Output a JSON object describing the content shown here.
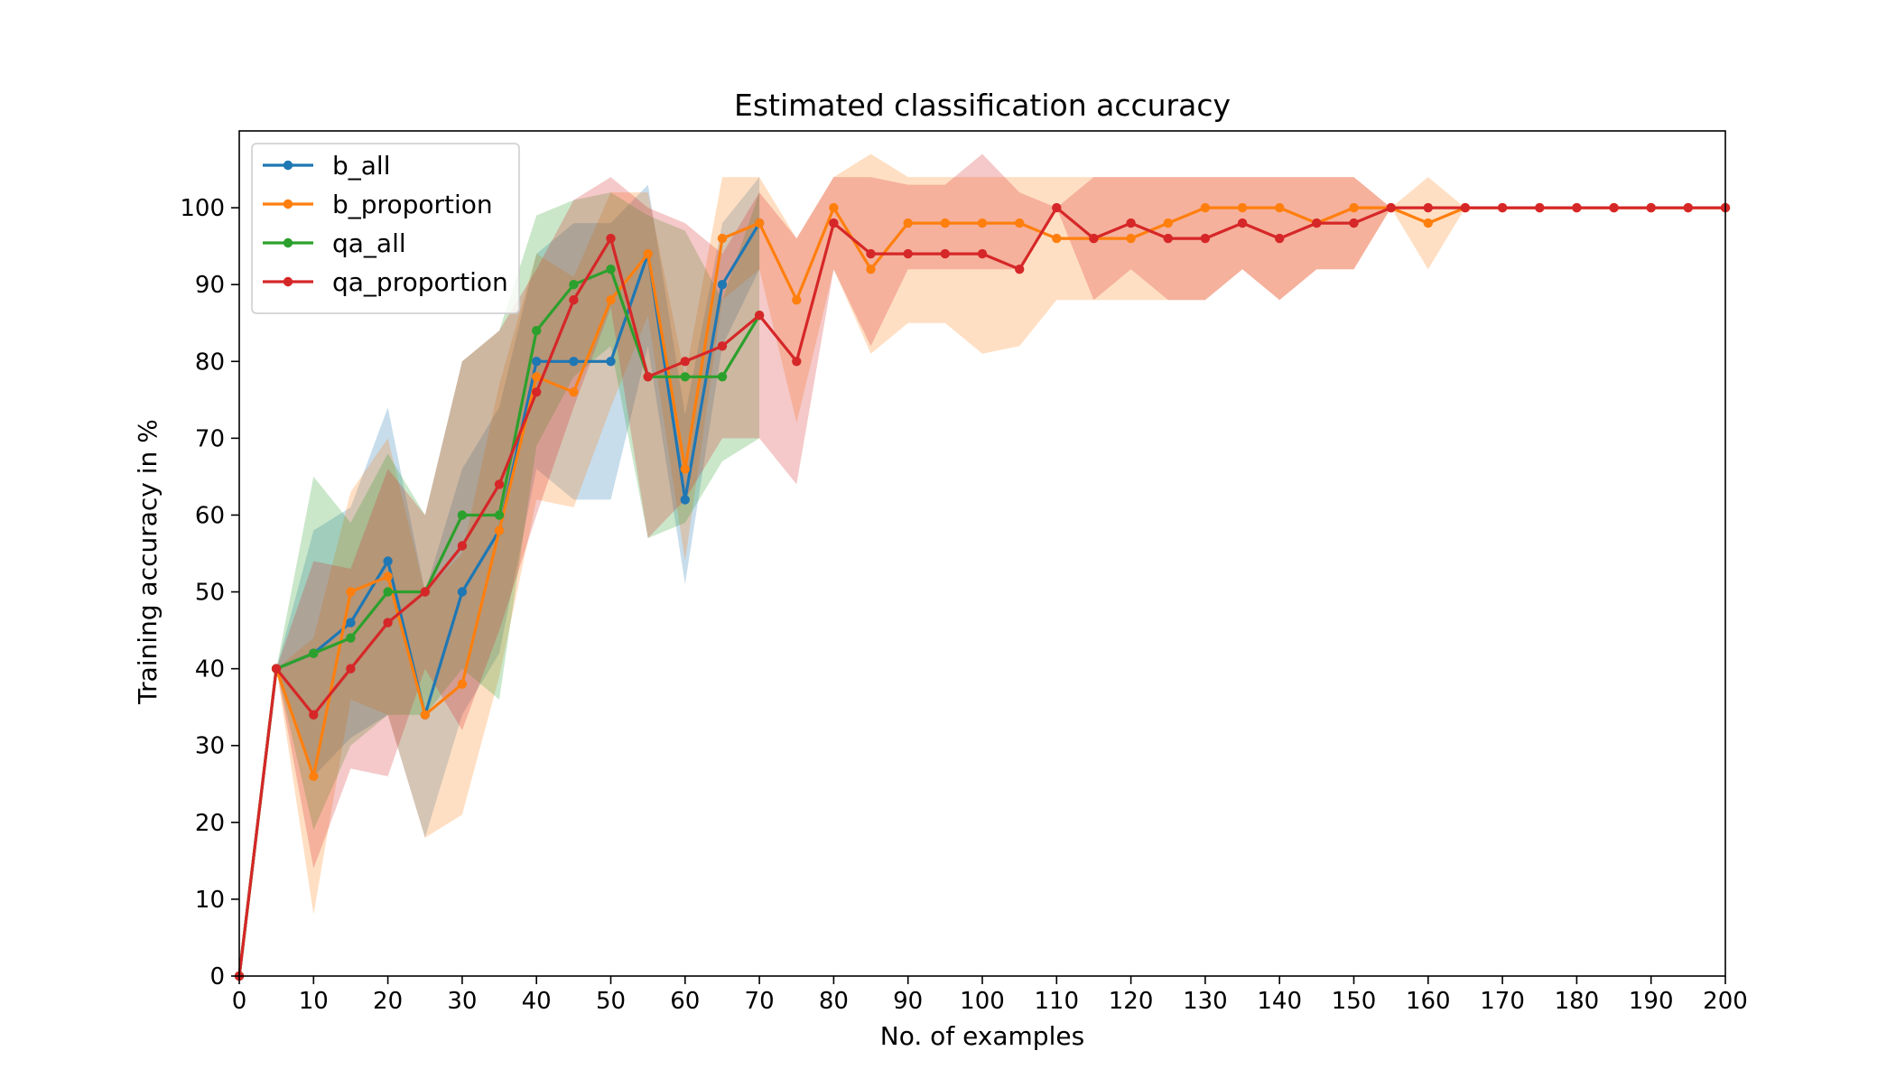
{
  "chart_data": {
    "type": "line",
    "title": "Estimated classification accuracy",
    "xlabel": "No. of examples",
    "ylabel": "Training accuracy in %",
    "xlim": [
      0,
      200
    ],
    "ylim": [
      0,
      110
    ],
    "xticks": [
      0,
      10,
      20,
      30,
      40,
      50,
      60,
      70,
      80,
      90,
      100,
      110,
      120,
      130,
      140,
      150,
      160,
      170,
      180,
      190,
      200
    ],
    "yticks": [
      0,
      10,
      20,
      30,
      40,
      50,
      60,
      70,
      80,
      90,
      100
    ],
    "grid": false,
    "legend_position": "top-left",
    "series": [
      {
        "name": "b_all",
        "color": "#1f77b4",
        "x": [
          0,
          5,
          10,
          15,
          20,
          25,
          30,
          35,
          40,
          45,
          50,
          55,
          60,
          65,
          70
        ],
        "y": [
          0,
          40,
          42,
          46,
          54,
          34,
          50,
          58,
          80,
          80,
          80,
          94,
          62,
          90,
          98
        ],
        "lower": [
          0,
          40,
          26,
          31,
          34,
          18,
          34,
          42,
          66,
          62,
          62,
          82,
          51,
          82,
          92
        ],
        "upper": [
          0,
          40,
          58,
          61,
          74,
          50,
          66,
          74,
          94,
          98,
          98,
          103,
          73,
          98,
          104
        ]
      },
      {
        "name": "b_proportion",
        "color": "#ff7f0e",
        "x": [
          0,
          5,
          10,
          15,
          20,
          25,
          30,
          35,
          40,
          45,
          50,
          55,
          60,
          65,
          70,
          75,
          80,
          85,
          90,
          95,
          100,
          105,
          110,
          115,
          120,
          125,
          130,
          135,
          140,
          145,
          150,
          155,
          160,
          165,
          170,
          175,
          180,
          185,
          190,
          195,
          200
        ],
        "y": [
          0,
          40,
          26,
          50,
          52,
          34,
          38,
          58,
          78,
          76,
          88,
          94,
          66,
          96,
          98,
          88,
          100,
          92,
          98,
          98,
          98,
          98,
          96,
          96,
          96,
          98,
          100,
          100,
          100,
          98,
          100,
          100,
          98,
          100,
          100,
          100,
          100,
          100,
          100,
          100,
          100
        ],
        "lower": [
          0,
          40,
          8,
          36,
          34,
          18,
          21,
          39,
          62,
          61,
          74,
          86,
          54,
          88,
          92,
          72,
          92,
          81,
          85,
          85,
          81,
          82,
          88,
          88,
          88,
          88,
          88,
          92,
          88,
          92,
          92,
          100,
          92,
          100,
          100,
          100,
          100,
          100,
          100,
          100,
          100
        ],
        "upper": [
          0,
          40,
          44,
          63,
          70,
          50,
          55,
          77,
          94,
          91,
          102,
          102,
          78,
          104,
          104,
          96,
          104,
          107,
          104,
          104,
          104,
          104,
          104,
          104,
          104,
          104,
          104,
          104,
          104,
          104,
          104,
          100,
          104,
          100,
          100,
          100,
          100,
          100,
          100,
          100,
          100
        ]
      },
      {
        "name": "qa_all",
        "color": "#2ca02c",
        "x": [
          0,
          5,
          10,
          15,
          20,
          25,
          30,
          35,
          40,
          45,
          50,
          55,
          60,
          65,
          70
        ],
        "y": [
          0,
          40,
          42,
          44,
          50,
          50,
          60,
          60,
          84,
          90,
          92,
          78,
          78,
          78,
          86
        ],
        "lower": [
          0,
          40,
          19,
          30,
          34,
          34,
          40,
          36,
          69,
          78,
          82,
          57,
          59,
          67,
          70
        ],
        "upper": [
          0,
          40,
          65,
          59,
          68,
          60,
          80,
          84,
          99,
          101,
          102,
          99,
          97,
          88,
          102
        ]
      },
      {
        "name": "qa_proportion",
        "color": "#d62728",
        "x": [
          0,
          5,
          10,
          15,
          20,
          25,
          30,
          35,
          40,
          45,
          50,
          55,
          60,
          65,
          70,
          75,
          80,
          85,
          90,
          95,
          100,
          105,
          110,
          115,
          120,
          125,
          130,
          135,
          140,
          145,
          150,
          155,
          160,
          165,
          170,
          175,
          180,
          185,
          190,
          195,
          200
        ],
        "y": [
          0,
          40,
          34,
          40,
          46,
          50,
          56,
          64,
          76,
          88,
          96,
          78,
          80,
          82,
          86,
          80,
          98,
          94,
          94,
          94,
          94,
          92,
          100,
          96,
          98,
          96,
          96,
          98,
          96,
          98,
          98,
          100,
          100,
          100,
          100,
          100,
          100,
          100,
          100,
          100,
          100
        ],
        "lower": [
          0,
          40,
          14,
          27,
          26,
          40,
          32,
          45,
          60,
          74,
          87,
          57,
          62,
          70,
          70,
          64,
          92,
          82,
          92,
          92,
          92,
          92,
          100,
          88,
          92,
          88,
          88,
          92,
          88,
          92,
          92,
          100,
          100,
          100,
          100,
          100,
          100,
          100,
          100,
          100,
          100
        ],
        "upper": [
          0,
          40,
          54,
          53,
          66,
          60,
          80,
          84,
          92,
          101,
          104,
          100,
          98,
          94,
          102,
          96,
          104,
          104,
          103,
          103,
          107,
          102,
          100,
          104,
          104,
          104,
          104,
          104,
          104,
          104,
          104,
          100,
          100,
          100,
          100,
          100,
          100,
          100,
          100,
          100,
          100
        ]
      }
    ]
  }
}
